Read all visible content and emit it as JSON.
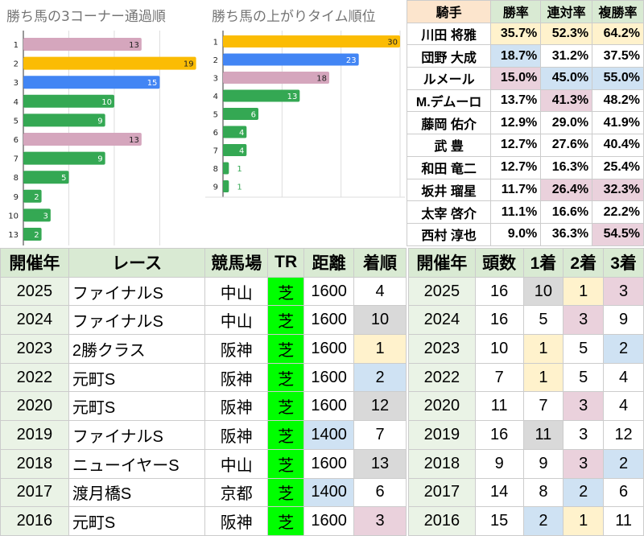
{
  "chart1": {
    "title": "勝ち馬の3コーナー通過順",
    "categories": [
      "1",
      "2",
      "3",
      "4",
      "5",
      "6",
      "7",
      "8",
      "9",
      "10",
      "13"
    ],
    "values": [
      13,
      19,
      15,
      10,
      9,
      13,
      9,
      5,
      2,
      3,
      2
    ],
    "colors": [
      "#d5a6bd",
      "#fbbc04",
      "#4285f4",
      "#34a853",
      "#34a853",
      "#d5a6bd",
      "#34a853",
      "#34a853",
      "#34a853",
      "#34a853",
      "#34a853"
    ]
  },
  "chart2": {
    "title": "勝ち馬の上がりタイム順位",
    "categories": [
      "1",
      "2",
      "3",
      "4",
      "5",
      "6",
      "7",
      "8",
      "9"
    ],
    "values": [
      30,
      23,
      18,
      13,
      6,
      4,
      4,
      1,
      1
    ],
    "colors": [
      "#fbbc04",
      "#4285f4",
      "#d5a6bd",
      "#34a853",
      "#34a853",
      "#34a853",
      "#34a853",
      "#34a853",
      "#34a853"
    ]
  },
  "chart_data": [
    {
      "type": "bar",
      "title": "勝ち馬の3コーナー通過順",
      "categories": [
        "1",
        "2",
        "3",
        "4",
        "5",
        "6",
        "7",
        "8",
        "9",
        "10",
        "13"
      ],
      "values": [
        13,
        19,
        15,
        10,
        9,
        13,
        9,
        5,
        2,
        3,
        2
      ],
      "xlim": [
        0,
        20
      ]
    },
    {
      "type": "bar",
      "title": "勝ち馬の上がりタイム順位",
      "categories": [
        "1",
        "2",
        "3",
        "4",
        "5",
        "6",
        "7",
        "8",
        "9"
      ],
      "values": [
        30,
        23,
        18,
        13,
        6,
        4,
        4,
        1,
        1
      ],
      "xlim": [
        0,
        30
      ]
    }
  ],
  "jockeys": {
    "headers": [
      "騎手",
      "勝率",
      "連対率",
      "複勝率"
    ],
    "rows": [
      {
        "name": "川田 将雅",
        "v": [
          "35.7%",
          "52.3%",
          "64.2%"
        ],
        "c": [
          "y",
          "y",
          "y"
        ]
      },
      {
        "name": "団野 大成",
        "v": [
          "18.7%",
          "31.2%",
          "37.5%"
        ],
        "c": [
          "b",
          "",
          ""
        ]
      },
      {
        "name": "ルメール",
        "v": [
          "15.0%",
          "45.0%",
          "55.0%"
        ],
        "c": [
          "p",
          "b",
          "b"
        ]
      },
      {
        "name": "M.デムーロ",
        "v": [
          "13.7%",
          "41.3%",
          "48.2%"
        ],
        "c": [
          "",
          "p",
          ""
        ]
      },
      {
        "name": "藤岡 佑介",
        "v": [
          "12.9%",
          "29.0%",
          "41.9%"
        ],
        "c": [
          "",
          "",
          ""
        ]
      },
      {
        "name": "武 豊",
        "v": [
          "12.7%",
          "27.6%",
          "40.4%"
        ],
        "c": [
          "",
          "",
          ""
        ]
      },
      {
        "name": "和田 竜二",
        "v": [
          "12.7%",
          "16.3%",
          "25.4%"
        ],
        "c": [
          "",
          "",
          ""
        ]
      },
      {
        "name": "坂井 瑠星",
        "v": [
          "11.7%",
          "26.4%",
          "32.3%"
        ],
        "c": [
          "",
          "p",
          "p"
        ]
      },
      {
        "name": "太宰 啓介",
        "v": [
          "11.1%",
          "16.6%",
          "22.2%"
        ],
        "c": [
          "",
          "",
          ""
        ]
      },
      {
        "name": "西村 淳也",
        "v": [
          "9.0%",
          "36.3%",
          "54.5%"
        ],
        "c": [
          "",
          "",
          "p"
        ]
      }
    ]
  },
  "races": {
    "headers": [
      "開催年",
      "レース",
      "競馬場",
      "TR",
      "距離",
      "着順"
    ],
    "rows": [
      {
        "v": [
          "2025",
          "ファイナルS",
          "中山",
          "芝",
          "1600",
          "4"
        ],
        "c": [
          "yr",
          "",
          "",
          "tr",
          "",
          ""
        ]
      },
      {
        "v": [
          "2024",
          "ファイナルS",
          "中山",
          "芝",
          "1600",
          "10"
        ],
        "c": [
          "yr",
          "",
          "",
          "tr",
          "",
          "g"
        ]
      },
      {
        "v": [
          "2023",
          "2勝クラス",
          "阪神",
          "芝",
          "1600",
          "1"
        ],
        "c": [
          "yr",
          "",
          "",
          "tr",
          "",
          "y"
        ]
      },
      {
        "v": [
          "2022",
          "元町S",
          "阪神",
          "芝",
          "1600",
          "2"
        ],
        "c": [
          "yr",
          "",
          "",
          "tr",
          "",
          "b"
        ]
      },
      {
        "v": [
          "2020",
          "元町S",
          "阪神",
          "芝",
          "1600",
          "12"
        ],
        "c": [
          "yr",
          "",
          "",
          "tr",
          "",
          "g"
        ]
      },
      {
        "v": [
          "2019",
          "ファイナルS",
          "阪神",
          "芝",
          "1400",
          "7"
        ],
        "c": [
          "yr",
          "",
          "",
          "tr",
          "b",
          ""
        ]
      },
      {
        "v": [
          "2018",
          "ニューイヤーS",
          "中山",
          "芝",
          "1600",
          "13"
        ],
        "c": [
          "yr",
          "",
          "",
          "tr",
          "",
          "g"
        ]
      },
      {
        "v": [
          "2017",
          "渡月橋S",
          "京都",
          "芝",
          "1400",
          "6"
        ],
        "c": [
          "yr",
          "",
          "",
          "tr",
          "b",
          ""
        ]
      },
      {
        "v": [
          "2016",
          "元町S",
          "阪神",
          "芝",
          "1600",
          "3"
        ],
        "c": [
          "yr",
          "",
          "",
          "tr",
          "",
          "p"
        ]
      }
    ]
  },
  "yearly": {
    "headers": [
      "開催年",
      "頭数",
      "1着",
      "2着",
      "3着"
    ],
    "rows": [
      {
        "v": [
          "2025",
          "16",
          "10",
          "1",
          "3"
        ],
        "c": [
          "yr",
          "",
          "g",
          "y",
          "p"
        ]
      },
      {
        "v": [
          "2024",
          "16",
          "5",
          "3",
          "9"
        ],
        "c": [
          "yr",
          "",
          "",
          "p",
          ""
        ]
      },
      {
        "v": [
          "2023",
          "10",
          "1",
          "5",
          "2"
        ],
        "c": [
          "yr",
          "",
          "y",
          "",
          "b"
        ]
      },
      {
        "v": [
          "2022",
          "7",
          "1",
          "5",
          "4"
        ],
        "c": [
          "yr",
          "",
          "y",
          "",
          ""
        ]
      },
      {
        "v": [
          "2020",
          "11",
          "7",
          "3",
          "4"
        ],
        "c": [
          "yr",
          "",
          "",
          "p",
          ""
        ]
      },
      {
        "v": [
          "2019",
          "16",
          "11",
          "3",
          "12"
        ],
        "c": [
          "yr",
          "",
          "g",
          "",
          ""
        ]
      },
      {
        "v": [
          "2018",
          "9",
          "9",
          "3",
          "2"
        ],
        "c": [
          "yr",
          "",
          "",
          "p",
          "b"
        ]
      },
      {
        "v": [
          "2017",
          "14",
          "8",
          "2",
          "6"
        ],
        "c": [
          "yr",
          "",
          "",
          "b",
          ""
        ]
      },
      {
        "v": [
          "2016",
          "15",
          "2",
          "1",
          "11"
        ],
        "c": [
          "yr",
          "",
          "b",
          "y",
          ""
        ]
      }
    ]
  }
}
